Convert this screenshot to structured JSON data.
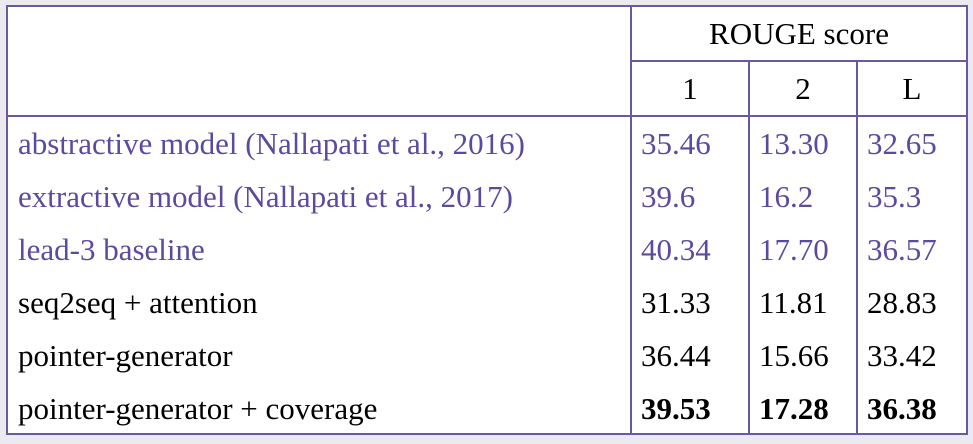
{
  "header": {
    "group_label": "ROUGE score",
    "columns": [
      "1",
      "2",
      "L"
    ]
  },
  "rows": [
    {
      "model": "abstractive model (Nallapati et al., 2016)",
      "r1": "35.46",
      "r2": "13.30",
      "rl": "32.65",
      "style": "baseline"
    },
    {
      "model": "extractive model (Nallapati et al., 2017)",
      "r1": "39.6",
      "r2": "16.2",
      "rl": "35.3",
      "style": "baseline"
    },
    {
      "model": "lead-3 baseline",
      "r1": "40.34",
      "r2": "17.70",
      "rl": "36.57",
      "style": "baseline"
    },
    {
      "model": "seq2seq + attention",
      "r1": "31.33",
      "r2": "11.81",
      "rl": "28.83",
      "style": "ours"
    },
    {
      "model": "pointer-generator",
      "r1": "36.44",
      "r2": "15.66",
      "rl": "33.42",
      "style": "ours"
    },
    {
      "model": "pointer-generator + coverage",
      "r1": "39.53",
      "r2": "17.28",
      "rl": "36.38",
      "style": "ours-bold"
    }
  ],
  "colors": {
    "baseline_text": "#5b4a9e",
    "border": "#6a58a0",
    "background": "#eceaf1"
  }
}
